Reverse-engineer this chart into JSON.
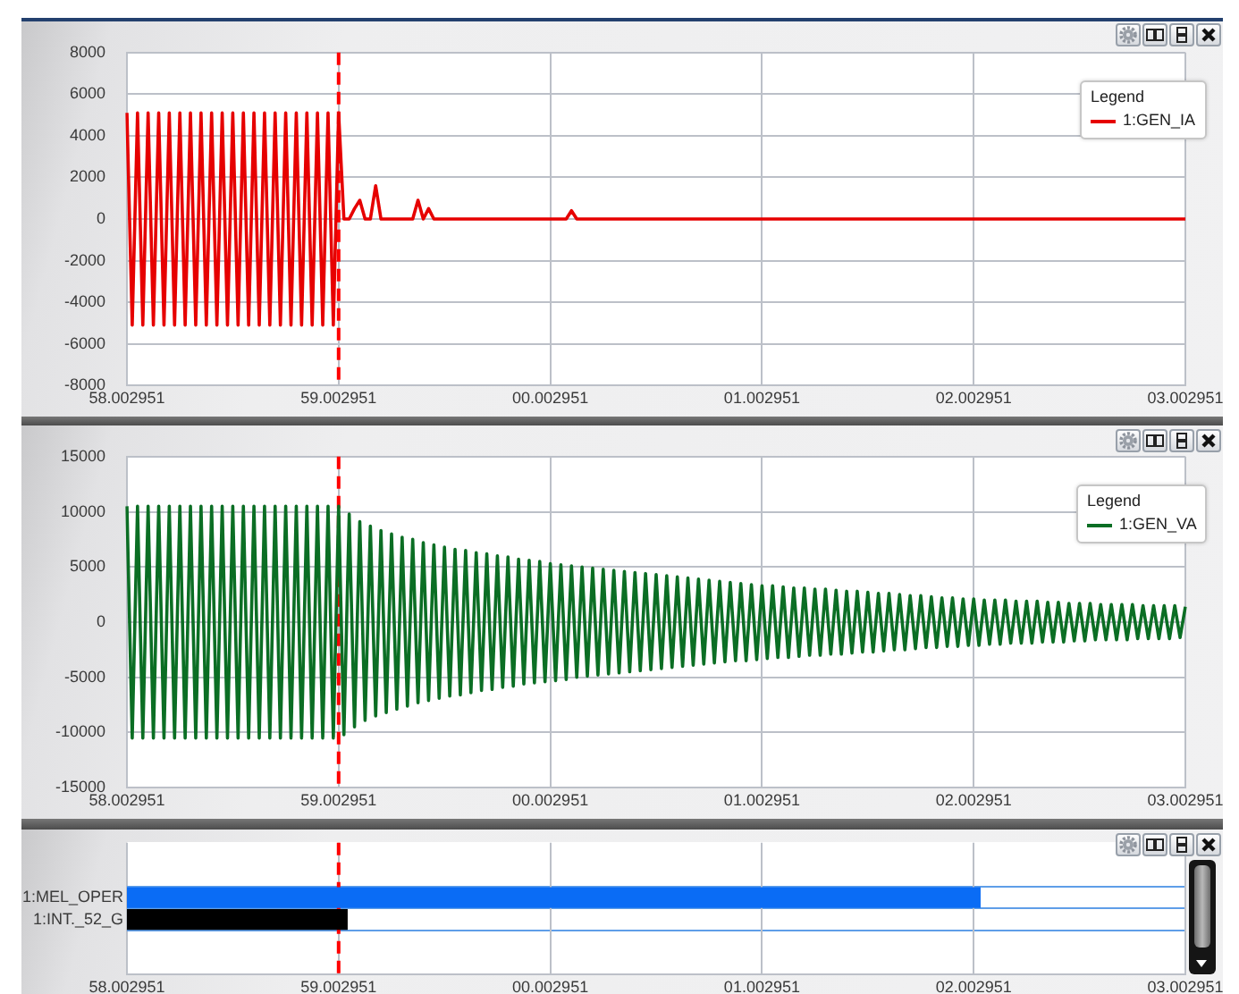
{
  "chart_data": [
    {
      "type": "line",
      "categories": [
        "58.002951",
        null,
        null,
        null,
        null,
        null,
        null,
        null,
        null,
        null,
        null,
        null,
        null,
        null,
        null,
        null,
        null,
        null,
        null,
        null,
        null,
        null,
        null,
        null,
        null,
        null,
        null,
        null,
        null,
        null,
        null,
        null,
        null,
        null,
        null,
        null,
        null,
        null,
        null,
        null,
        "59.002951",
        null,
        null,
        null,
        null,
        null,
        null,
        null,
        null,
        null,
        null,
        null,
        null,
        null,
        null,
        null,
        null,
        null,
        null,
        null,
        null,
        null,
        null,
        null,
        null,
        null,
        null,
        null,
        null,
        null,
        null,
        null,
        null,
        null,
        null,
        null,
        null,
        null,
        null,
        null,
        "00.002951",
        null,
        null,
        null,
        null,
        null,
        null,
        null,
        null,
        null,
        null,
        null,
        null,
        null,
        null,
        null,
        null,
        null,
        null,
        null,
        null,
        null,
        null,
        null,
        null,
        null,
        null,
        null,
        null,
        null,
        null,
        null,
        null,
        null,
        null,
        null,
        null,
        null,
        null,
        null,
        "01.002951",
        null,
        null,
        null,
        null,
        null,
        null,
        null,
        null,
        null,
        null,
        null,
        null,
        null,
        null,
        null,
        null,
        null,
        null,
        null,
        null,
        null,
        null,
        null,
        null,
        null,
        null,
        null,
        null,
        null,
        null,
        null,
        null,
        null,
        null,
        null,
        null,
        null,
        null,
        null,
        "02.002951",
        null,
        null,
        null,
        null,
        null,
        null,
        null,
        null,
        null,
        null,
        null,
        null,
        null,
        null,
        null,
        null,
        null,
        null,
        null,
        null,
        null,
        null,
        null,
        null,
        null,
        null,
        null,
        null,
        null,
        null,
        null,
        null,
        null,
        null,
        null,
        null,
        null,
        null,
        null,
        "03.002951"
      ],
      "series": [
        {
          "name": "1:GEN_IA",
          "color": "#e60000",
          "values": [
            5100,
            -5100,
            5100,
            -5100,
            5100,
            -5100,
            5100,
            -5100,
            5100,
            -5100,
            5100,
            -5100,
            5100,
            -5100,
            5100,
            -5100,
            5100,
            -5100,
            5100,
            -5100,
            5100,
            -5100,
            5100,
            -5100,
            5100,
            -5100,
            5100,
            -5100,
            5100,
            -5100,
            5100,
            -5100,
            5100,
            -5100,
            5100,
            -5100,
            5100,
            -5100,
            5100,
            -5100,
            5100,
            0,
            0,
            500,
            900,
            0,
            0,
            1600,
            0,
            0,
            0,
            0,
            0,
            0,
            0,
            900,
            0,
            500,
            0,
            0,
            0,
            0,
            0,
            0,
            0,
            0,
            0,
            0,
            0,
            0,
            0,
            0,
            0,
            0,
            0,
            0,
            0,
            0,
            0,
            0,
            0,
            0,
            0,
            0,
            400,
            0,
            0,
            0,
            0,
            0,
            0,
            0,
            0,
            0,
            0,
            0,
            0,
            0,
            0,
            0,
            0,
            0,
            0,
            0,
            0,
            0,
            0,
            0,
            0,
            0,
            0,
            0,
            0,
            0,
            0,
            0,
            0,
            0,
            0,
            0,
            0,
            0,
            0,
            0,
            0,
            0,
            0,
            0,
            0,
            0,
            0,
            0,
            0,
            0,
            0,
            0,
            0,
            0,
            0,
            0,
            0,
            0,
            0,
            0,
            0,
            0,
            0,
            0,
            0,
            0,
            0,
            0,
            0,
            0,
            0,
            0,
            0,
            0,
            0,
            0,
            0,
            0,
            0,
            0,
            0,
            0,
            0,
            0,
            0,
            0,
            0,
            0,
            0,
            0,
            0,
            0,
            0,
            0,
            0,
            0,
            0,
            0,
            0,
            0,
            0,
            0,
            0,
            0,
            0,
            0,
            0,
            0,
            0,
            0,
            0,
            0,
            0,
            0,
            0,
            0,
            0
          ]
        }
      ],
      "ylim": [
        -8000,
        8000
      ],
      "yticks": [
        -8000,
        -6000,
        -4000,
        -2000,
        0,
        2000,
        4000,
        6000,
        8000
      ],
      "grid": true,
      "legend": "top right",
      "legend_title": "Legend",
      "ref_lines": [
        {
          "axis": "x",
          "value": "59.002951",
          "color": "#ff0000",
          "line_style": "dashed"
        }
      ]
    },
    {
      "type": "line",
      "categories": [
        "58.002951",
        null,
        null,
        null,
        null,
        null,
        null,
        null,
        null,
        null,
        null,
        null,
        null,
        null,
        null,
        null,
        null,
        null,
        null,
        null,
        null,
        null,
        null,
        null,
        null,
        null,
        null,
        null,
        null,
        null,
        null,
        null,
        null,
        null,
        null,
        null,
        null,
        null,
        null,
        null,
        "59.002951",
        null,
        null,
        null,
        null,
        null,
        null,
        null,
        null,
        null,
        null,
        null,
        null,
        null,
        null,
        null,
        null,
        null,
        null,
        null,
        null,
        null,
        null,
        null,
        null,
        null,
        null,
        null,
        null,
        null,
        null,
        null,
        null,
        null,
        null,
        null,
        null,
        null,
        null,
        null,
        "00.002951",
        null,
        null,
        null,
        null,
        null,
        null,
        null,
        null,
        null,
        null,
        null,
        null,
        null,
        null,
        null,
        null,
        null,
        null,
        null,
        null,
        null,
        null,
        null,
        null,
        null,
        null,
        null,
        null,
        null,
        null,
        null,
        null,
        null,
        null,
        null,
        null,
        null,
        null,
        null,
        "01.002951",
        null,
        null,
        null,
        null,
        null,
        null,
        null,
        null,
        null,
        null,
        null,
        null,
        null,
        null,
        null,
        null,
        null,
        null,
        null,
        null,
        null,
        null,
        null,
        null,
        null,
        null,
        null,
        null,
        null,
        null,
        null,
        null,
        null,
        null,
        null,
        null,
        null,
        null,
        null,
        "02.002951",
        null,
        null,
        null,
        null,
        null,
        null,
        null,
        null,
        null,
        null,
        null,
        null,
        null,
        null,
        null,
        null,
        null,
        null,
        null,
        null,
        null,
        null,
        null,
        null,
        null,
        null,
        null,
        null,
        null,
        null,
        null,
        null,
        null,
        null,
        null,
        null,
        null,
        null,
        null,
        "03.002951"
      ],
      "series": [
        {
          "name": "1:GEN_VA",
          "color": "#0b6e24",
          "values": [
            10500,
            -10500,
            10500,
            -10500,
            10500,
            -10500,
            10500,
            -10500,
            10500,
            -10500,
            10500,
            -10500,
            10500,
            -10500,
            10500,
            -10500,
            10500,
            -10500,
            10500,
            -10500,
            10500,
            -10500,
            10500,
            -10500,
            10500,
            -10500,
            10500,
            -10500,
            10500,
            -10500,
            10500,
            -10500,
            10500,
            -10500,
            10500,
            -10500,
            10500,
            -10500,
            10500,
            -10500,
            10500,
            -10200,
            9800,
            -9500,
            9100,
            -8900,
            8700,
            -8500,
            8300,
            -8200,
            8000,
            -7900,
            7700,
            -7600,
            7500,
            -7300,
            7200,
            -7100,
            7000,
            -6900,
            6800,
            -6700,
            6600,
            -6600,
            6500,
            -6400,
            6300,
            -6200,
            6200,
            -6100,
            6000,
            -5900,
            5900,
            -5800,
            5700,
            -5600,
            5600,
            -5500,
            5500,
            -5400,
            5300,
            -5300,
            5200,
            -5200,
            5100,
            -5000,
            5000,
            -4900,
            4900,
            -4800,
            4800,
            -4700,
            4700,
            -4600,
            4600,
            -4500,
            4500,
            -4400,
            4400,
            -4300,
            4300,
            -4200,
            4200,
            -4100,
            4100,
            -4000,
            4000,
            -3900,
            3900,
            -3800,
            3800,
            -3700,
            3700,
            -3600,
            3600,
            -3500,
            3500,
            -3500,
            3400,
            -3400,
            3300,
            -3300,
            3300,
            -3200,
            3200,
            -3200,
            3100,
            -3100,
            3100,
            -3000,
            3000,
            -3000,
            3000,
            -2900,
            2900,
            -2900,
            2800,
            -2800,
            2800,
            -2700,
            2700,
            -2700,
            2600,
            -2600,
            2600,
            -2500,
            2500,
            -2500,
            2400,
            -2400,
            2400,
            -2300,
            2300,
            -2300,
            2200,
            -2200,
            2200,
            -2200,
            2100,
            -2100,
            2100,
            -2100,
            2000,
            -2000,
            2000,
            -2000,
            2000,
            -1900,
            1900,
            -1900,
            1900,
            -1900,
            1900,
            -1800,
            1800,
            -1800,
            1800,
            -1800,
            1700,
            -1700,
            1700,
            -1700,
            1700,
            -1600,
            1600,
            -1600,
            1600,
            -1600,
            1600,
            -1600,
            1600,
            -1500,
            1500,
            -1500,
            1500,
            -1500,
            1500,
            -1500,
            1500,
            -1400,
            1400
          ]
        }
      ],
      "ylim": [
        -15000,
        15000
      ],
      "yticks": [
        -15000,
        -10000,
        -5000,
        0,
        5000,
        10000,
        15000
      ],
      "grid": true,
      "legend": "top right",
      "legend_title": "Legend",
      "ref_lines": [
        {
          "axis": "x",
          "value": "59.002951",
          "color": "#ff0000",
          "line_style": "dashed"
        }
      ]
    },
    {
      "type": "bar",
      "orientation": "horizontal",
      "categories": [
        "1:MEL_OPER",
        "1:INT._52_G"
      ],
      "base": [
        58.002951,
        58.002951
      ],
      "values": [
        4.03,
        1.04
      ],
      "colors": [
        "#0a6cf5",
        "#000000"
      ],
      "xlim": [
        58.002951,
        63.002951
      ],
      "xticks": [
        58.002951,
        59.002951
      ],
      "x2lim": [
        -1.997049,
        3.002951
      ],
      "x2ticks": [
        {
          "value": 0.002951,
          "label": "00.002951"
        },
        {
          "value": 1.002951,
          "label": "01.002951"
        },
        {
          "value": 2.002951,
          "label": "02.002951"
        },
        {
          "value": 3.002951,
          "label": "03.002951"
        }
      ],
      "grid": true,
      "ref_lines": [
        {
          "axis": "x",
          "value": 59.002951,
          "color": "#ff0000",
          "line_style": "dashed"
        }
      ]
    }
  ]
}
